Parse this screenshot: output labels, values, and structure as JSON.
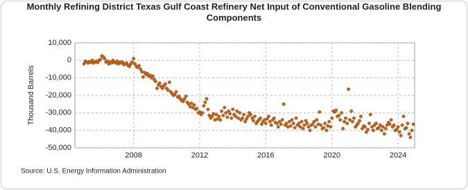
{
  "chart_data": {
    "type": "scatter",
    "title": "Monthly Refining District Texas Gulf Coast Refinery Net Input of Conventional Gasoline Blending Components",
    "ylabel": "Thousand Barrels",
    "source": "Source: U.S. Energy Information Administration",
    "xlim": [
      2004.45,
      2025.0
    ],
    "xticks": [
      2008,
      2012,
      2016,
      2020,
      2024
    ],
    "ylim": [
      -50000,
      10000
    ],
    "yticks": [
      {
        "value": 10000,
        "label": "10,000"
      },
      0,
      {
        "value": -10000,
        "label": "-10,000"
      },
      {
        "value": -20000,
        "label": "-20,000"
      },
      {
        "value": -30000,
        "label": "-30,000"
      },
      {
        "value": -40000,
        "label": "-40,000"
      },
      {
        "value": -50000,
        "label": "-50,000"
      }
    ],
    "grid": true,
    "color": "#c0661c",
    "x": [
      2005.0,
      2005.08,
      2005.17,
      2005.25,
      2005.33,
      2005.42,
      2005.5,
      2005.58,
      2005.67,
      2005.75,
      2005.83,
      2005.92,
      2006.0,
      2006.08,
      2006.17,
      2006.25,
      2006.33,
      2006.42,
      2006.5,
      2006.58,
      2006.67,
      2006.75,
      2006.83,
      2006.92,
      2007.0,
      2007.08,
      2007.17,
      2007.25,
      2007.33,
      2007.42,
      2007.5,
      2007.58,
      2007.67,
      2007.75,
      2007.83,
      2007.92,
      2008.0,
      2008.08,
      2008.17,
      2008.25,
      2008.33,
      2008.42,
      2008.5,
      2008.58,
      2008.67,
      2008.75,
      2008.83,
      2008.92,
      2009.0,
      2009.08,
      2009.17,
      2009.25,
      2009.33,
      2009.42,
      2009.5,
      2009.58,
      2009.67,
      2009.75,
      2009.83,
      2009.92,
      2010.0,
      2010.08,
      2010.17,
      2010.25,
      2010.33,
      2010.42,
      2010.5,
      2010.58,
      2010.67,
      2010.75,
      2010.83,
      2010.92,
      2011.0,
      2011.08,
      2011.17,
      2011.25,
      2011.33,
      2011.42,
      2011.5,
      2011.58,
      2011.67,
      2011.75,
      2011.83,
      2011.92,
      2012.0,
      2012.08,
      2012.17,
      2012.25,
      2012.33,
      2012.42,
      2012.5,
      2012.58,
      2012.67,
      2012.75,
      2012.83,
      2012.92,
      2013.0,
      2013.08,
      2013.17,
      2013.25,
      2013.33,
      2013.42,
      2013.5,
      2013.58,
      2013.67,
      2013.75,
      2013.83,
      2013.92,
      2014.0,
      2014.08,
      2014.17,
      2014.25,
      2014.33,
      2014.42,
      2014.5,
      2014.58,
      2014.67,
      2014.75,
      2014.83,
      2014.92,
      2015.0,
      2015.08,
      2015.17,
      2015.25,
      2015.33,
      2015.42,
      2015.5,
      2015.58,
      2015.67,
      2015.75,
      2015.83,
      2015.92,
      2016.0,
      2016.08,
      2016.17,
      2016.25,
      2016.33,
      2016.42,
      2016.5,
      2016.58,
      2016.67,
      2016.75,
      2016.83,
      2016.92,
      2017.0,
      2017.08,
      2017.17,
      2017.25,
      2017.33,
      2017.42,
      2017.5,
      2017.58,
      2017.67,
      2017.75,
      2017.83,
      2017.92,
      2018.0,
      2018.08,
      2018.17,
      2018.25,
      2018.33,
      2018.42,
      2018.5,
      2018.58,
      2018.67,
      2018.75,
      2018.83,
      2018.92,
      2019.0,
      2019.08,
      2019.17,
      2019.25,
      2019.33,
      2019.42,
      2019.5,
      2019.58,
      2019.67,
      2019.75,
      2019.83,
      2019.92,
      2020.0,
      2020.08,
      2020.17,
      2020.25,
      2020.33,
      2020.42,
      2020.5,
      2020.58,
      2020.67,
      2020.75,
      2020.83,
      2020.92,
      2021.0,
      2021.08,
      2021.17,
      2021.25,
      2021.33,
      2021.42,
      2021.5,
      2021.58,
      2021.67,
      2021.75,
      2021.83,
      2021.92,
      2022.0,
      2022.08,
      2022.17,
      2022.25,
      2022.33,
      2022.42,
      2022.5,
      2022.58,
      2022.67,
      2022.75,
      2022.83,
      2022.92,
      2023.0,
      2023.08,
      2023.17,
      2023.25,
      2023.33,
      2023.42,
      2023.5,
      2023.58,
      2023.67,
      2023.75,
      2023.83,
      2023.92,
      2024.0,
      2024.08,
      2024.17,
      2024.25,
      2024.33,
      2024.42,
      2024.5,
      2024.58,
      2024.67,
      2024.75,
      2024.83,
      2024.92
    ],
    "values": [
      -2000,
      -500,
      -1000,
      -1500,
      -800,
      -1200,
      0,
      -1500,
      -1000,
      -500,
      -1200,
      0,
      500,
      2500,
      2000,
      1000,
      -1000,
      -500,
      -2000,
      -1000,
      -1500,
      0,
      -1000,
      -1500,
      -500,
      -2000,
      -1000,
      -1500,
      -1000,
      -2500,
      -2000,
      -1500,
      -3000,
      -3500,
      -2000,
      -1000,
      1000,
      -2000,
      -3500,
      -4000,
      -3000,
      -5000,
      -6500,
      -9500,
      -7000,
      -8000,
      -7500,
      -9000,
      -8500,
      -10000,
      -9000,
      -11000,
      -12000,
      -16000,
      -14000,
      -13000,
      -15000,
      -16000,
      -14500,
      -13500,
      -16000,
      -17000,
      -12500,
      -18000,
      -19000,
      -20000,
      -19500,
      -18000,
      -21000,
      -20500,
      -22000,
      -23000,
      -23500,
      -22000,
      -20500,
      -24000,
      -25000,
      -26500,
      -24500,
      -27000,
      -25500,
      -28000,
      -27500,
      -30000,
      -29500,
      -31000,
      -30000,
      -26000,
      -24000,
      -22000,
      -28000,
      -31500,
      -33000,
      -32000,
      -30500,
      -34000,
      -31000,
      -33500,
      -32000,
      -34000,
      -29000,
      -31500,
      -27000,
      -30000,
      -32500,
      -29000,
      -30500,
      -33000,
      -28000,
      -31000,
      -32000,
      -29000,
      -33000,
      -30000,
      -34000,
      -33000,
      -31000,
      -35000,
      -33500,
      -32000,
      -30000,
      -31000,
      -33000,
      -34500,
      -32000,
      -36000,
      -35000,
      -34000,
      -33000,
      -36500,
      -35000,
      -34000,
      -36000,
      -33500,
      -32000,
      -35000,
      -37000,
      -34000,
      -33000,
      -35500,
      -36000,
      -38000,
      -35000,
      -36500,
      -34000,
      -25000,
      -37000,
      -36000,
      -38000,
      -35000,
      -37500,
      -34000,
      -36000,
      -38500,
      -33000,
      -37000,
      -36000,
      -38000,
      -35000,
      -39000,
      -37000,
      -34500,
      -36000,
      -38000,
      -40000,
      -37000,
      -36500,
      -35000,
      -38000,
      -34000,
      -36500,
      -29500,
      -37000,
      -39000,
      -38500,
      -36000,
      -40000,
      -37500,
      -35000,
      -38000,
      -33000,
      -29000,
      -29500,
      -28500,
      -32000,
      -31500,
      -34000,
      -30000,
      -39000,
      -35000,
      -33000,
      -36000,
      -16500,
      -34000,
      -29000,
      -35000,
      -33000,
      -38000,
      -37000,
      -36000,
      -34500,
      -32000,
      -39000,
      -37500,
      -38000,
      -41000,
      -39500,
      -36000,
      -31000,
      -38000,
      -40000,
      -37000,
      -36000,
      -39000,
      -38500,
      -37000,
      -40000,
      -38000,
      -42000,
      -39000,
      -37000,
      -35500,
      -36500,
      -34000,
      -38000,
      -37000,
      -40000,
      -39500,
      -38000,
      -41000,
      -43000,
      -37000,
      -32000,
      -39000,
      -38500,
      -36000,
      -42000,
      -44000,
      -40000,
      -36500
    ]
  }
}
